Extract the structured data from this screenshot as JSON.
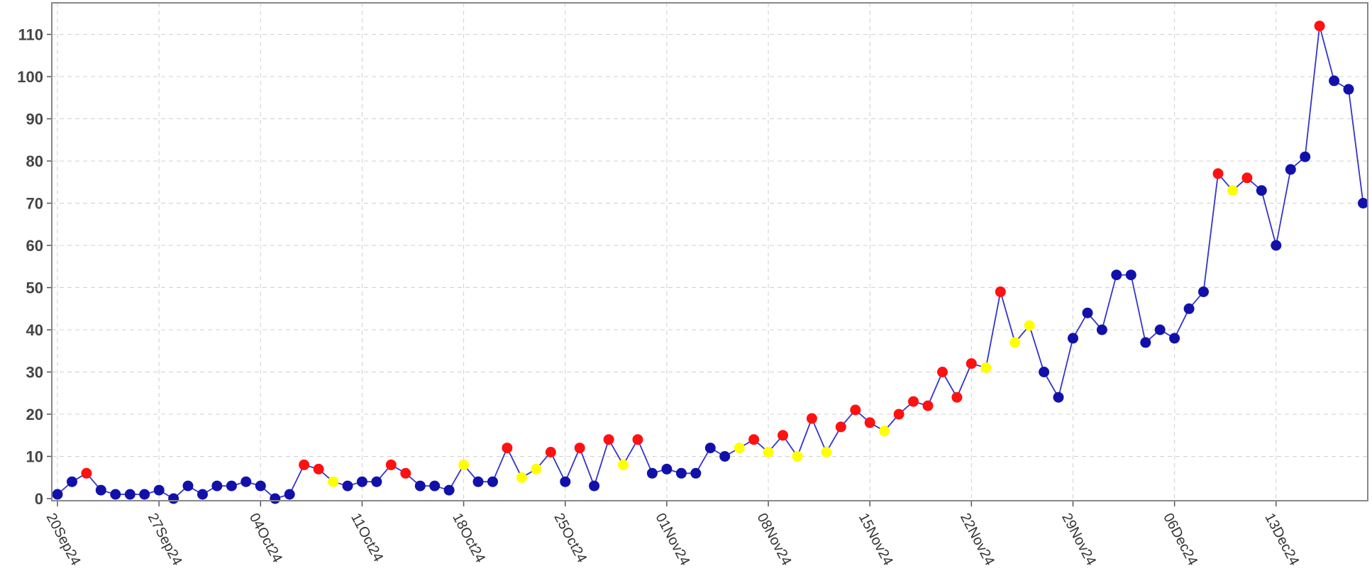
{
  "chart_data": {
    "type": "line",
    "title": "",
    "xlabel": "",
    "ylabel": "",
    "ylim": [
      0,
      115
    ],
    "y_ticks": [
      0,
      10,
      20,
      30,
      40,
      50,
      60,
      70,
      80,
      90,
      100,
      110
    ],
    "grid": true,
    "legend": "none",
    "x_tick_labels": [
      {
        "label": "20Sep24",
        "date": "2024-09-20"
      },
      {
        "label": "27Sep24",
        "date": "2024-09-27"
      },
      {
        "label": "04Oct24",
        "date": "2024-10-04"
      },
      {
        "label": "11Oct24",
        "date": "2024-10-11"
      },
      {
        "label": "18Oct24",
        "date": "2024-10-18"
      },
      {
        "label": "25Oct24",
        "date": "2024-10-25"
      },
      {
        "label": "01Nov24",
        "date": "2024-11-01"
      },
      {
        "label": "08Nov24",
        "date": "2024-11-08"
      },
      {
        "label": "15Nov24",
        "date": "2024-11-15"
      },
      {
        "label": "22Nov24",
        "date": "2024-11-22"
      },
      {
        "label": "29Nov24",
        "date": "2024-11-29"
      },
      {
        "label": "06Dec24",
        "date": "2024-12-06"
      },
      {
        "label": "13Dec24",
        "date": "2024-12-13"
      }
    ],
    "colors": {
      "line": "#3333cc",
      "blue": "#1111aa",
      "red": "#ff1111",
      "yellow": "#ffff00",
      "frame": "#888888",
      "grid": "#d0d0d0"
    },
    "points": [
      {
        "date": "2024-09-20",
        "value": 1,
        "color": "blue"
      },
      {
        "date": "2024-09-21",
        "value": 4,
        "color": "blue"
      },
      {
        "date": "2024-09-22",
        "value": 6,
        "color": "red"
      },
      {
        "date": "2024-09-23",
        "value": 2,
        "color": "blue"
      },
      {
        "date": "2024-09-24",
        "value": 1,
        "color": "blue"
      },
      {
        "date": "2024-09-25",
        "value": 1,
        "color": "blue"
      },
      {
        "date": "2024-09-26",
        "value": 1,
        "color": "blue"
      },
      {
        "date": "2024-09-27",
        "value": 2,
        "color": "blue"
      },
      {
        "date": "2024-09-28",
        "value": 0,
        "color": "blue"
      },
      {
        "date": "2024-09-29",
        "value": 3,
        "color": "blue"
      },
      {
        "date": "2024-09-30",
        "value": 1,
        "color": "blue"
      },
      {
        "date": "2024-10-01",
        "value": 3,
        "color": "blue"
      },
      {
        "date": "2024-10-02",
        "value": 3,
        "color": "blue"
      },
      {
        "date": "2024-10-03",
        "value": 4,
        "color": "blue"
      },
      {
        "date": "2024-10-04",
        "value": 3,
        "color": "blue"
      },
      {
        "date": "2024-10-05",
        "value": 0,
        "color": "blue"
      },
      {
        "date": "2024-10-06",
        "value": 1,
        "color": "blue"
      },
      {
        "date": "2024-10-07",
        "value": 8,
        "color": "red"
      },
      {
        "date": "2024-10-08",
        "value": 7,
        "color": "red"
      },
      {
        "date": "2024-10-09",
        "value": 4,
        "color": "yellow"
      },
      {
        "date": "2024-10-10",
        "value": 3,
        "color": "blue"
      },
      {
        "date": "2024-10-11",
        "value": 4,
        "color": "blue"
      },
      {
        "date": "2024-10-12",
        "value": 4,
        "color": "blue"
      },
      {
        "date": "2024-10-13",
        "value": 8,
        "color": "red"
      },
      {
        "date": "2024-10-14",
        "value": 6,
        "color": "red"
      },
      {
        "date": "2024-10-15",
        "value": 3,
        "color": "blue"
      },
      {
        "date": "2024-10-16",
        "value": 3,
        "color": "blue"
      },
      {
        "date": "2024-10-17",
        "value": 2,
        "color": "blue"
      },
      {
        "date": "2024-10-18",
        "value": 8,
        "color": "yellow"
      },
      {
        "date": "2024-10-19",
        "value": 4,
        "color": "blue"
      },
      {
        "date": "2024-10-20",
        "value": 4,
        "color": "blue"
      },
      {
        "date": "2024-10-21",
        "value": 12,
        "color": "red"
      },
      {
        "date": "2024-10-22",
        "value": 5,
        "color": "yellow"
      },
      {
        "date": "2024-10-23",
        "value": 7,
        "color": "yellow"
      },
      {
        "date": "2024-10-24",
        "value": 11,
        "color": "red"
      },
      {
        "date": "2024-10-25",
        "value": 4,
        "color": "blue"
      },
      {
        "date": "2024-10-26",
        "value": 12,
        "color": "red"
      },
      {
        "date": "2024-10-27",
        "value": 3,
        "color": "blue"
      },
      {
        "date": "2024-10-28",
        "value": 14,
        "color": "red"
      },
      {
        "date": "2024-10-29",
        "value": 8,
        "color": "yellow"
      },
      {
        "date": "2024-10-30",
        "value": 14,
        "color": "red"
      },
      {
        "date": "2024-10-31",
        "value": 6,
        "color": "blue"
      },
      {
        "date": "2024-11-01",
        "value": 7,
        "color": "blue"
      },
      {
        "date": "2024-11-02",
        "value": 6,
        "color": "blue"
      },
      {
        "date": "2024-11-03",
        "value": 6,
        "color": "blue"
      },
      {
        "date": "2024-11-04",
        "value": 12,
        "color": "blue"
      },
      {
        "date": "2024-11-05",
        "value": 10,
        "color": "blue"
      },
      {
        "date": "2024-11-06",
        "value": 12,
        "color": "yellow"
      },
      {
        "date": "2024-11-07",
        "value": 14,
        "color": "red"
      },
      {
        "date": "2024-11-08",
        "value": 11,
        "color": "yellow"
      },
      {
        "date": "2024-11-09",
        "value": 15,
        "color": "red"
      },
      {
        "date": "2024-11-10",
        "value": 10,
        "color": "yellow"
      },
      {
        "date": "2024-11-11",
        "value": 19,
        "color": "red"
      },
      {
        "date": "2024-11-12",
        "value": 11,
        "color": "yellow"
      },
      {
        "date": "2024-11-13",
        "value": 17,
        "color": "red"
      },
      {
        "date": "2024-11-14",
        "value": 21,
        "color": "red"
      },
      {
        "date": "2024-11-15",
        "value": 18,
        "color": "red"
      },
      {
        "date": "2024-11-16",
        "value": 16,
        "color": "yellow"
      },
      {
        "date": "2024-11-17",
        "value": 20,
        "color": "red"
      },
      {
        "date": "2024-11-18",
        "value": 23,
        "color": "red"
      },
      {
        "date": "2024-11-19",
        "value": 22,
        "color": "red"
      },
      {
        "date": "2024-11-20",
        "value": 30,
        "color": "red"
      },
      {
        "date": "2024-11-21",
        "value": 24,
        "color": "red"
      },
      {
        "date": "2024-11-22",
        "value": 32,
        "color": "red"
      },
      {
        "date": "2024-11-23",
        "value": 31,
        "color": "yellow"
      },
      {
        "date": "2024-11-24",
        "value": 49,
        "color": "red"
      },
      {
        "date": "2024-11-25",
        "value": 37,
        "color": "yellow"
      },
      {
        "date": "2024-11-26",
        "value": 41,
        "color": "yellow"
      },
      {
        "date": "2024-11-27",
        "value": 30,
        "color": "blue"
      },
      {
        "date": "2024-11-28",
        "value": 24,
        "color": "blue"
      },
      {
        "date": "2024-11-29",
        "value": 38,
        "color": "blue"
      },
      {
        "date": "2024-11-30",
        "value": 44,
        "color": "blue"
      },
      {
        "date": "2024-12-01",
        "value": 40,
        "color": "blue"
      },
      {
        "date": "2024-12-02",
        "value": 53,
        "color": "blue"
      },
      {
        "date": "2024-12-03",
        "value": 53,
        "color": "blue"
      },
      {
        "date": "2024-12-04",
        "value": 37,
        "color": "blue"
      },
      {
        "date": "2024-12-05",
        "value": 40,
        "color": "blue"
      },
      {
        "date": "2024-12-06",
        "value": 38,
        "color": "blue"
      },
      {
        "date": "2024-12-07",
        "value": 45,
        "color": "blue"
      },
      {
        "date": "2024-12-08",
        "value": 49,
        "color": "blue"
      },
      {
        "date": "2024-12-09",
        "value": 77,
        "color": "red"
      },
      {
        "date": "2024-12-10",
        "value": 73,
        "color": "yellow"
      },
      {
        "date": "2024-12-11",
        "value": 76,
        "color": "red"
      },
      {
        "date": "2024-12-12",
        "value": 73,
        "color": "blue"
      },
      {
        "date": "2024-12-13",
        "value": 60,
        "color": "blue"
      },
      {
        "date": "2024-12-14",
        "value": 78,
        "color": "blue"
      },
      {
        "date": "2024-12-15",
        "value": 81,
        "color": "blue"
      },
      {
        "date": "2024-12-16",
        "value": 112,
        "color": "red"
      },
      {
        "date": "2024-12-17",
        "value": 99,
        "color": "blue"
      },
      {
        "date": "2024-12-18",
        "value": 97,
        "color": "blue"
      },
      {
        "date": "2024-12-19",
        "value": 70,
        "color": "blue"
      }
    ]
  }
}
